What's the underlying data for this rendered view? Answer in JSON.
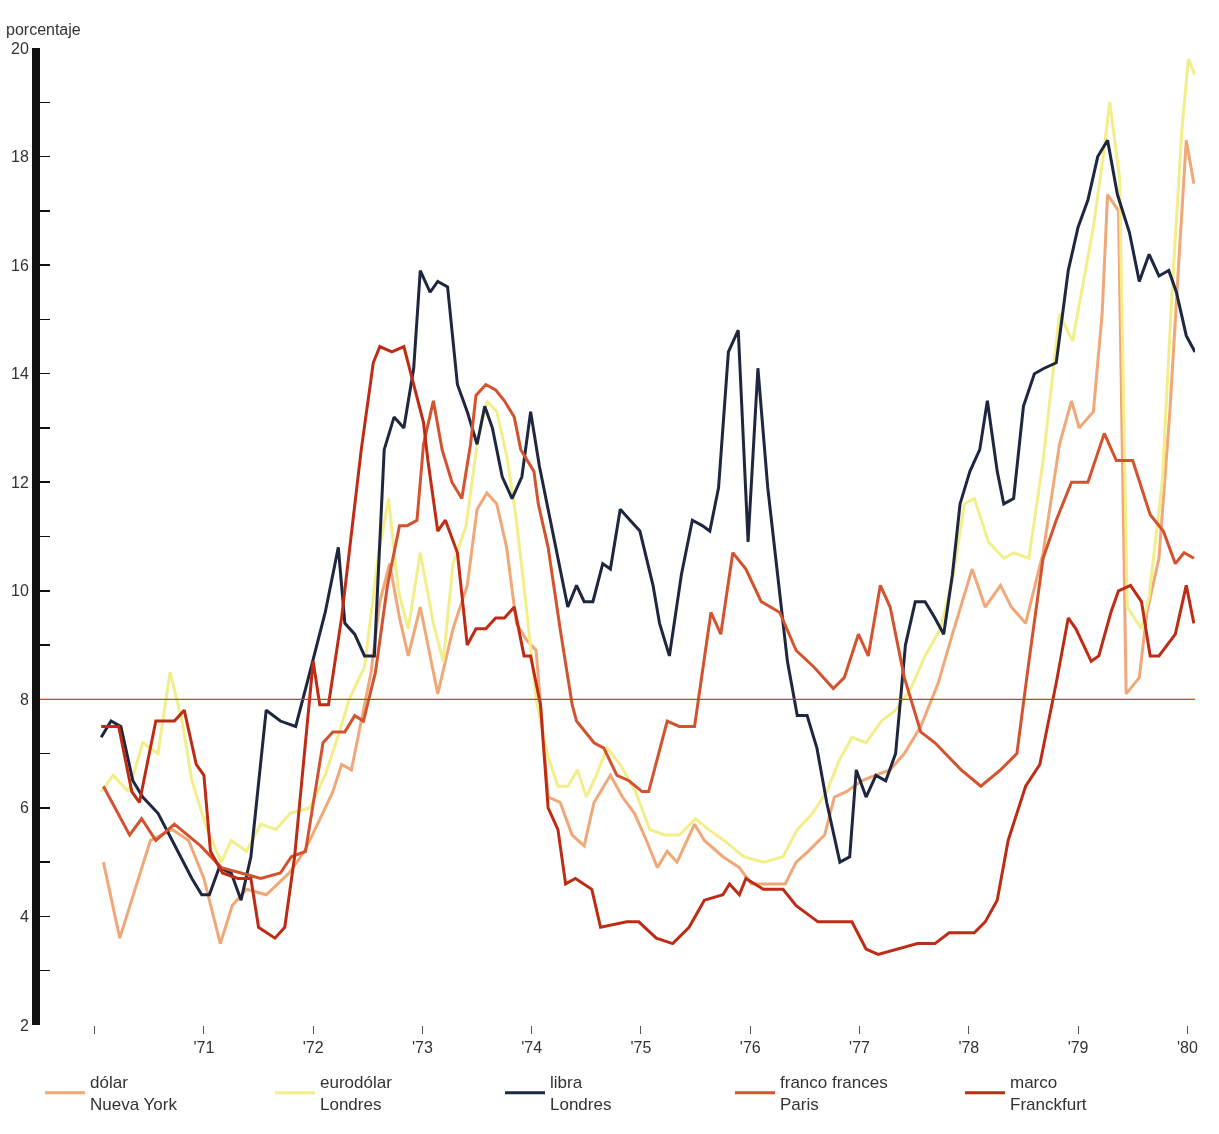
{
  "chart_data": {
    "type": "line",
    "ylabel": "porcentaje",
    "xlim": [
      1969.5,
      1980.07
    ],
    "ylim": [
      2,
      20
    ],
    "xticks": [
      {
        "value": 1970,
        "label": null
      },
      {
        "value": 1971,
        "label": "'71"
      },
      {
        "value": 1972,
        "label": "'72"
      },
      {
        "value": 1973,
        "label": "'73"
      },
      {
        "value": 1974,
        "label": "'74"
      },
      {
        "value": 1975,
        "label": "'75"
      },
      {
        "value": 1976,
        "label": "'76"
      },
      {
        "value": 1977,
        "label": "'77"
      },
      {
        "value": 1978,
        "label": "'78"
      },
      {
        "value": 1979,
        "label": "'79"
      },
      {
        "value": 1980,
        "label": "'80"
      }
    ],
    "yticks": [
      2,
      {
        "value": 3,
        "label": null
      },
      4,
      {
        "value": 5,
        "label": null
      },
      6,
      {
        "value": 7,
        "label": null
      },
      8,
      {
        "value": 9,
        "label": null
      },
      10,
      {
        "value": 11,
        "label": null
      },
      12,
      {
        "value": 13,
        "label": null
      },
      14,
      {
        "value": 15,
        "label": null
      },
      16,
      {
        "value": 17,
        "label": null
      },
      18,
      {
        "value": 19,
        "label": null
      },
      20
    ],
    "grid": false,
    "legend": "bottom",
    "marker": "none",
    "line_style": "solid",
    "ref_lines": [
      {
        "axis": "y",
        "value": 8,
        "label": null,
        "color": "#b84a2a"
      }
    ],
    "series": [
      {
        "name": "dólar\nNueva York",
        "color": "#f0a878",
        "x": [
          1970.08,
          1970.23,
          1970.51,
          1970.71,
          1970.86,
          1971.0,
          1971.15,
          1971.26,
          1971.39,
          1971.57,
          1971.78,
          1971.92,
          1972.04,
          1972.18,
          1972.26,
          1972.35,
          1972.44,
          1972.53,
          1972.61,
          1972.7,
          1972.79,
          1972.87,
          1972.98,
          1973.14,
          1973.28,
          1973.41,
          1973.5,
          1973.59,
          1973.68,
          1973.77,
          1973.86,
          1973.95,
          1974.04,
          1974.15,
          1974.26,
          1974.37,
          1974.48,
          1974.57,
          1974.72,
          1974.83,
          1974.94,
          1975.05,
          1975.15,
          1975.24,
          1975.33,
          1975.49,
          1975.58,
          1975.75,
          1975.9,
          1976.01,
          1976.32,
          1976.42,
          1976.53,
          1976.68,
          1976.77,
          1976.88,
          1977.02,
          1977.14,
          1977.28,
          1977.41,
          1977.56,
          1977.72,
          1977.85,
          1978.03,
          1978.15,
          1978.29,
          1978.39,
          1978.52,
          1978.68,
          1978.83,
          1978.94,
          1979.01,
          1979.14,
          1979.22,
          1979.27,
          1979.37,
          1979.44,
          1979.56,
          1979.63,
          1979.74,
          1979.84,
          1979.92,
          1979.99,
          1980.06
        ],
        "values": [
          5.0,
          3.6,
          5.4,
          5.6,
          5.4,
          4.7,
          3.5,
          4.2,
          4.5,
          4.4,
          4.8,
          5.2,
          5.7,
          6.3,
          6.8,
          6.7,
          7.6,
          8.5,
          9.8,
          10.5,
          9.5,
          8.8,
          9.7,
          8.1,
          9.3,
          10.1,
          11.5,
          11.8,
          11.6,
          10.8,
          9.4,
          9.1,
          8.9,
          6.2,
          6.1,
          5.5,
          5.3,
          6.1,
          6.6,
          6.2,
          5.9,
          5.4,
          4.9,
          5.2,
          5.0,
          5.7,
          5.4,
          5.1,
          4.9,
          4.6,
          4.6,
          5.0,
          5.2,
          5.5,
          6.2,
          6.3,
          6.5,
          6.6,
          6.7,
          7.0,
          7.5,
          8.3,
          9.2,
          10.4,
          9.7,
          10.1,
          9.7,
          9.4,
          10.7,
          12.7,
          13.5,
          13.0,
          13.3,
          15.1,
          17.3,
          17.0,
          8.1,
          8.4,
          9.6,
          10.6,
          13.3,
          16.0,
          18.3,
          17.5
        ]
      },
      {
        "name": "eurodólar\nLondres",
        "color": "#f2ee8a",
        "x": [
          1970.06,
          1970.17,
          1970.31,
          1970.44,
          1970.58,
          1970.69,
          1970.8,
          1970.89,
          1971.03,
          1971.16,
          1971.25,
          1971.39,
          1971.52,
          1971.66,
          1971.79,
          1971.97,
          1972.11,
          1972.24,
          1972.33,
          1972.47,
          1972.6,
          1972.69,
          1972.78,
          1972.87,
          1972.98,
          1973.1,
          1973.19,
          1973.28,
          1973.4,
          1973.5,
          1973.59,
          1973.68,
          1973.77,
          1973.86,
          1973.95,
          1974.04,
          1974.14,
          1974.24,
          1974.33,
          1974.42,
          1974.5,
          1974.59,
          1974.69,
          1974.81,
          1974.95,
          1975.08,
          1975.22,
          1975.35,
          1975.5,
          1975.62,
          1975.76,
          1975.94,
          1976.12,
          1976.3,
          1976.43,
          1976.57,
          1976.7,
          1976.82,
          1976.93,
          1977.06,
          1977.2,
          1977.33,
          1977.47,
          1977.6,
          1977.74,
          1977.85,
          1977.96,
          1978.05,
          1978.18,
          1978.32,
          1978.41,
          1978.55,
          1978.68,
          1978.83,
          1978.95,
          1979.14,
          1979.23,
          1979.29,
          1979.38,
          1979.45,
          1979.58,
          1979.65,
          1979.77,
          1979.86,
          1979.95,
          1980.01,
          1980.07
        ],
        "values": [
          6.3,
          6.6,
          6.3,
          7.2,
          7.0,
          8.5,
          7.6,
          6.5,
          5.6,
          5.0,
          5.4,
          5.2,
          5.7,
          5.6,
          5.9,
          6.0,
          6.6,
          7.4,
          8.0,
          8.6,
          10.7,
          11.7,
          10.0,
          9.3,
          10.7,
          9.4,
          8.7,
          10.5,
          11.2,
          12.7,
          13.5,
          13.3,
          12.5,
          11.3,
          9.7,
          8.0,
          7.0,
          6.4,
          6.4,
          6.7,
          6.2,
          6.6,
          7.1,
          6.8,
          6.3,
          5.6,
          5.5,
          5.5,
          5.8,
          5.6,
          5.4,
          5.1,
          5.0,
          5.1,
          5.6,
          5.9,
          6.3,
          6.9,
          7.3,
          7.2,
          7.6,
          7.8,
          8.2,
          8.8,
          9.3,
          10.2,
          11.6,
          11.7,
          10.9,
          10.6,
          10.7,
          10.6,
          12.4,
          15.1,
          14.6,
          16.7,
          18.0,
          19.0,
          17.6,
          9.7,
          9.3,
          9.9,
          12.0,
          15.5,
          18.5,
          19.8,
          19.5
        ]
      },
      {
        "name": "libra\nLondres",
        "color": "#1f2640",
        "x": [
          1970.06,
          1970.15,
          1970.24,
          1970.35,
          1970.44,
          1970.58,
          1970.71,
          1970.89,
          1970.98,
          1971.05,
          1971.14,
          1971.25,
          1971.34,
          1971.43,
          1971.57,
          1971.7,
          1971.84,
          1971.97,
          1972.11,
          1972.23,
          1972.29,
          1972.38,
          1972.47,
          1972.56,
          1972.65,
          1972.74,
          1972.83,
          1972.92,
          1972.98,
          1973.07,
          1973.14,
          1973.23,
          1973.32,
          1973.41,
          1973.5,
          1973.57,
          1973.64,
          1973.73,
          1973.82,
          1973.91,
          1973.99,
          1974.07,
          1974.16,
          1974.25,
          1974.33,
          1974.41,
          1974.48,
          1974.56,
          1974.65,
          1974.72,
          1974.81,
          1974.9,
          1974.99,
          1975.11,
          1975.17,
          1975.26,
          1975.37,
          1975.47,
          1975.56,
          1975.63,
          1975.71,
          1975.8,
          1975.89,
          1975.98,
          1976.07,
          1976.16,
          1976.25,
          1976.34,
          1976.43,
          1976.52,
          1976.61,
          1976.7,
          1976.82,
          1976.91,
          1976.97,
          1977.06,
          1977.15,
          1977.24,
          1977.33,
          1977.42,
          1977.51,
          1977.6,
          1977.69,
          1977.77,
          1977.85,
          1977.92,
          1978.01,
          1978.1,
          1978.17,
          1978.26,
          1978.32,
          1978.41,
          1978.5,
          1978.6,
          1978.69,
          1978.8,
          1978.91,
          1979.0,
          1979.09,
          1979.18,
          1979.27,
          1979.36,
          1979.47,
          1979.56,
          1979.65,
          1979.74,
          1979.83,
          1979.9,
          1979.99,
          1980.07
        ],
        "values": [
          7.3,
          7.6,
          7.5,
          6.5,
          6.2,
          5.9,
          5.4,
          4.7,
          4.4,
          4.4,
          4.9,
          4.8,
          4.3,
          5.1,
          7.8,
          7.6,
          7.5,
          8.5,
          9.6,
          10.8,
          9.4,
          9.2,
          8.8,
          8.8,
          12.6,
          13.2,
          13.0,
          14.1,
          15.9,
          15.5,
          15.7,
          15.6,
          13.8,
          13.3,
          12.7,
          13.4,
          13.0,
          12.1,
          11.7,
          12.1,
          13.3,
          12.3,
          11.4,
          10.5,
          9.7,
          10.1,
          9.8,
          9.8,
          10.5,
          10.4,
          11.5,
          11.3,
          11.1,
          10.1,
          9.4,
          8.8,
          10.3,
          11.3,
          11.2,
          11.1,
          11.9,
          14.4,
          14.8,
          10.9,
          14.1,
          11.9,
          10.3,
          8.7,
          7.7,
          7.7,
          7.1,
          6.1,
          5.0,
          5.1,
          6.7,
          6.2,
          6.6,
          6.5,
          7.0,
          9.0,
          9.8,
          9.8,
          9.5,
          9.2,
          10.3,
          11.6,
          12.2,
          12.6,
          13.5,
          12.2,
          11.6,
          11.7,
          13.4,
          14.0,
          14.1,
          14.2,
          15.9,
          16.7,
          17.2,
          18.0,
          18.3,
          17.3,
          16.6,
          15.7,
          16.2,
          15.8,
          15.9,
          15.5,
          14.7,
          14.4
        ]
      },
      {
        "name": "franco frances\nParis",
        "color": "#d4532f",
        "x": [
          1970.08,
          1970.32,
          1970.43,
          1970.56,
          1970.73,
          1970.97,
          1971.16,
          1971.34,
          1971.52,
          1971.7,
          1971.8,
          1971.93,
          1972.09,
          1972.18,
          1972.29,
          1972.38,
          1972.46,
          1972.57,
          1972.68,
          1972.79,
          1972.86,
          1972.95,
          1973.01,
          1973.1,
          1973.18,
          1973.27,
          1973.36,
          1973.44,
          1973.49,
          1973.58,
          1973.67,
          1973.75,
          1973.84,
          1973.9,
          1974.02,
          1974.06,
          1974.15,
          1974.26,
          1974.37,
          1974.41,
          1974.57,
          1974.66,
          1974.78,
          1974.89,
          1975.01,
          1975.07,
          1975.24,
          1975.35,
          1975.49,
          1975.64,
          1975.73,
          1975.84,
          1975.96,
          1976.1,
          1976.27,
          1976.42,
          1976.58,
          1976.76,
          1976.86,
          1976.99,
          1977.08,
          1977.19,
          1977.28,
          1977.41,
          1977.56,
          1977.69,
          1977.93,
          1978.11,
          1978.29,
          1978.44,
          1978.55,
          1978.68,
          1978.8,
          1978.94,
          1979.09,
          1979.24,
          1979.35,
          1979.5,
          1979.66,
          1979.78,
          1979.89,
          1979.97,
          1980.06
        ],
        "values": [
          6.4,
          5.5,
          5.8,
          5.4,
          5.7,
          5.3,
          4.9,
          4.8,
          4.7,
          4.8,
          5.1,
          5.2,
          7.2,
          7.4,
          7.4,
          7.7,
          7.6,
          8.5,
          10.1,
          11.2,
          11.2,
          11.3,
          12.7,
          13.5,
          12.6,
          12.0,
          11.7,
          12.7,
          13.6,
          13.8,
          13.7,
          13.5,
          13.2,
          12.6,
          12.2,
          11.6,
          10.8,
          9.3,
          7.9,
          7.6,
          7.2,
          7.1,
          6.6,
          6.5,
          6.3,
          6.3,
          7.6,
          7.5,
          7.5,
          9.6,
          9.2,
          10.7,
          10.4,
          9.8,
          9.6,
          8.9,
          8.6,
          8.2,
          8.4,
          9.2,
          8.8,
          10.1,
          9.7,
          8.4,
          7.4,
          7.2,
          6.7,
          6.4,
          6.7,
          7.0,
          8.7,
          10.6,
          11.3,
          12.0,
          12.0,
          12.9,
          12.4,
          12.4,
          11.4,
          11.1,
          10.5,
          10.7,
          10.6
        ]
      },
      {
        "name": "marco\nFranckfurt",
        "color": "#bf2c16",
        "x": [
          1970.06,
          1970.22,
          1970.34,
          1970.41,
          1970.56,
          1970.73,
          1970.82,
          1970.93,
          1971.0,
          1971.06,
          1971.17,
          1971.31,
          1971.43,
          1971.5,
          1971.65,
          1971.74,
          1971.83,
          1972.0,
          1972.06,
          1972.14,
          1972.26,
          1972.37,
          1972.44,
          1972.55,
          1972.61,
          1972.72,
          1972.83,
          1972.92,
          1973.01,
          1973.05,
          1973.14,
          1973.21,
          1973.32,
          1973.41,
          1973.49,
          1973.58,
          1973.67,
          1973.75,
          1973.84,
          1973.93,
          1973.99,
          1974.08,
          1974.15,
          1974.24,
          1974.31,
          1974.4,
          1974.55,
          1974.63,
          1974.87,
          1974.98,
          1975.14,
          1975.29,
          1975.44,
          1975.58,
          1975.75,
          1975.81,
          1975.9,
          1975.96,
          1976.12,
          1976.3,
          1976.42,
          1976.62,
          1976.84,
          1976.93,
          1977.06,
          1977.17,
          1977.53,
          1977.69,
          1977.82,
          1977.93,
          1978.05,
          1978.15,
          1978.26,
          1978.36,
          1978.52,
          1978.65,
          1978.8,
          1978.91,
          1978.98,
          1979.12,
          1979.19,
          1979.3,
          1979.37,
          1979.48,
          1979.58,
          1979.66,
          1979.74,
          1979.89,
          1979.99,
          1980.06
        ],
        "values": [
          7.5,
          7.5,
          6.3,
          6.1,
          7.6,
          7.6,
          7.8,
          6.8,
          6.6,
          5.2,
          4.8,
          4.7,
          4.7,
          3.8,
          3.6,
          3.8,
          5.1,
          8.7,
          7.9,
          7.9,
          9.5,
          11.4,
          12.6,
          14.2,
          14.5,
          14.4,
          14.5,
          13.8,
          13.1,
          12.4,
          11.1,
          11.3,
          10.7,
          9.0,
          9.3,
          9.3,
          9.5,
          9.5,
          9.7,
          8.8,
          8.8,
          7.9,
          6.0,
          5.6,
          4.6,
          4.7,
          4.5,
          3.8,
          3.9,
          3.9,
          3.6,
          3.5,
          3.8,
          4.3,
          4.4,
          4.6,
          4.4,
          4.7,
          4.5,
          4.5,
          4.2,
          3.9,
          3.9,
          3.9,
          3.4,
          3.3,
          3.5,
          3.5,
          3.7,
          3.7,
          3.7,
          3.9,
          4.3,
          5.4,
          6.4,
          6.8,
          8.3,
          9.5,
          9.3,
          8.7,
          8.8,
          9.6,
          10.0,
          10.1,
          9.8,
          8.8,
          8.8,
          9.2,
          10.1,
          9.4
        ]
      }
    ]
  }
}
